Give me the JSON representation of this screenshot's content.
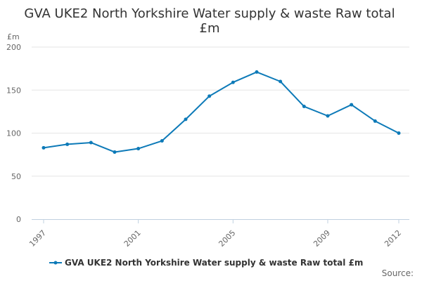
{
  "chart_data": {
    "type": "line",
    "title_lines": [
      "GVA UKE2 North Yorkshire Water supply & waste Raw total",
      "£m"
    ],
    "ylabel": "£m",
    "xlabel": "",
    "x": [
      1997,
      1998,
      1999,
      2000,
      2001,
      2002,
      2003,
      2004,
      2005,
      2006,
      2007,
      2008,
      2009,
      2010,
      2011,
      2012
    ],
    "series": [
      {
        "name": "GVA UKE2 North Yorkshire Water supply & waste Raw total £m",
        "values": [
          83,
          87,
          89,
          78,
          82,
          91,
          116,
          143,
          159,
          171,
          160,
          131,
          120,
          133,
          114,
          100
        ]
      }
    ],
    "ylim": [
      0,
      200
    ],
    "yticks": [
      0,
      50,
      100,
      150,
      200
    ],
    "xticks": [
      "1997",
      "2001",
      "2005",
      "2009",
      "2012"
    ],
    "grid": true,
    "legend": "bottom-center",
    "color": "#0d7ab8",
    "source_label": "Source:"
  }
}
